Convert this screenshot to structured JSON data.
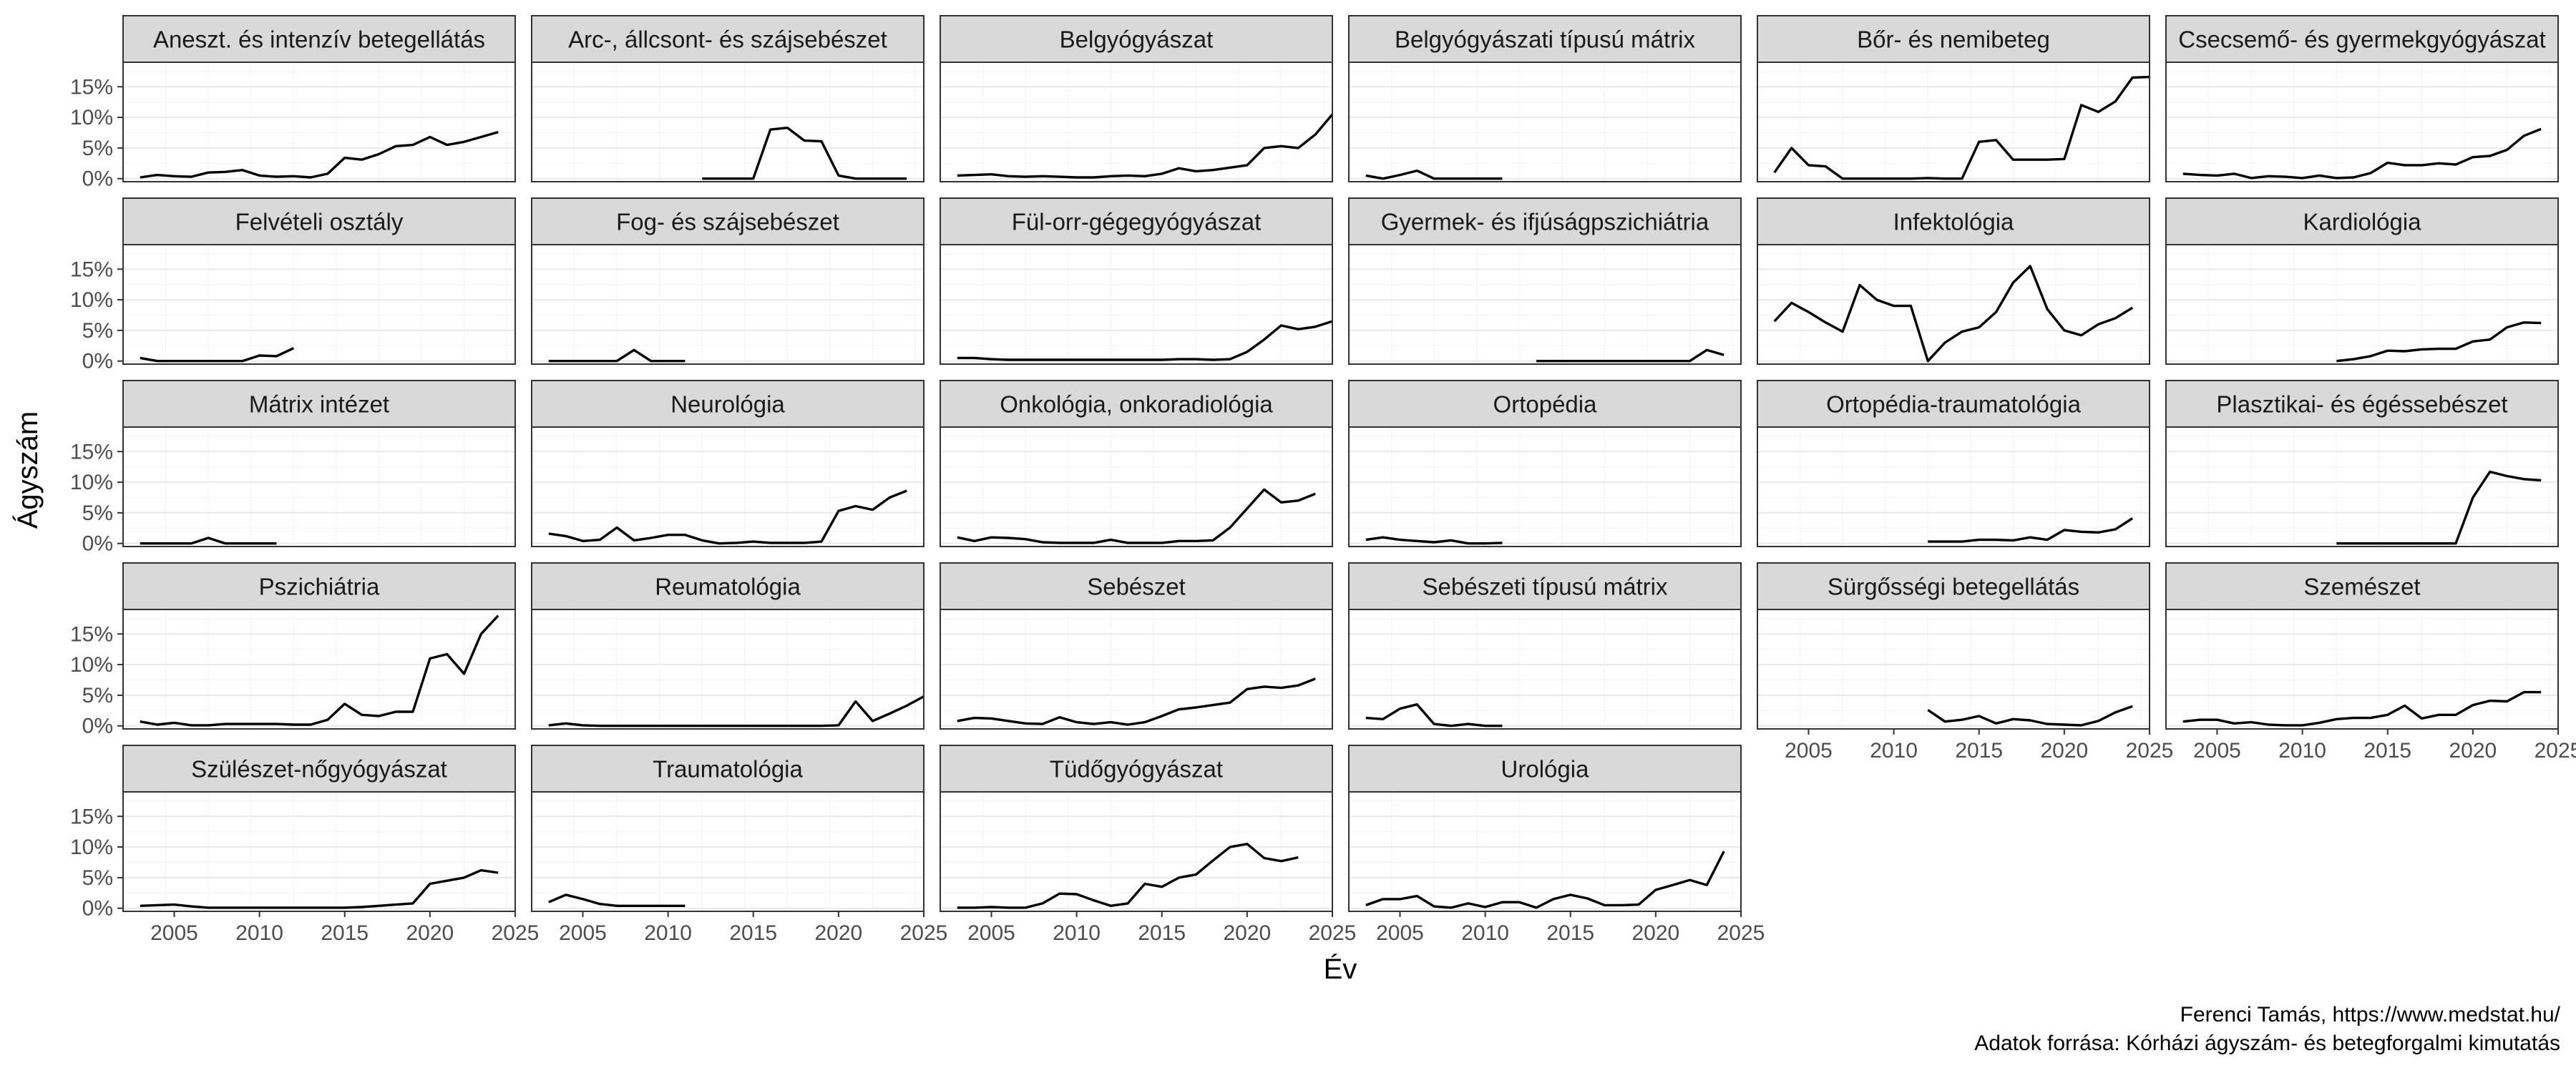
{
  "chart_data": {
    "type": "line",
    "xlabel": "Év",
    "ylabel": "Ágyszám",
    "xlim": [
      2002,
      2025
    ],
    "ylim": [
      -0.005,
      0.19
    ],
    "x_ticks": [
      2005,
      2010,
      2015,
      2020,
      2025
    ],
    "y_ticks": [
      0,
      0.05,
      0.1,
      0.15
    ],
    "y_tick_labels": [
      "0%",
      "5%",
      "10%",
      "15%"
    ],
    "ncol": 6,
    "grid": true,
    "line_color": "#000000",
    "strip_fill": "#d9d9d9",
    "caption": [
      "Ferenci Tamás, https://www.medstat.hu/",
      "Adatok forrása: Kórházi ágyszám- és betegforgalmi kimutatás"
    ],
    "panels": [
      {
        "name": "Aneszt. és intenzív betegellátás",
        "x_start": 2003,
        "values": [
          0.002,
          0.006,
          0.004,
          0.003,
          0.01,
          0.011,
          0.014,
          0.005,
          0.003,
          0.004,
          0.002,
          0.008,
          0.034,
          0.031,
          0.04,
          0.053,
          0.055,
          0.068,
          0.055,
          0.06,
          0.068,
          0.076
        ]
      },
      {
        "name": "Arc-, állcsont- és szájsebészet",
        "x_start": 2012,
        "values": [
          0.0,
          0.0,
          0.0,
          0.0,
          0.08,
          0.083,
          0.062,
          0.061,
          0.005,
          0.0,
          0.0,
          0.0,
          0.0
        ]
      },
      {
        "name": "Belgyógyászat",
        "x_start": 2003,
        "values": [
          0.005,
          0.006,
          0.007,
          0.004,
          0.003,
          0.004,
          0.003,
          0.002,
          0.002,
          0.004,
          0.005,
          0.004,
          0.008,
          0.017,
          0.012,
          0.014,
          0.018,
          0.022,
          0.05,
          0.053,
          0.05,
          0.072,
          0.105
        ]
      },
      {
        "name": "Belgyógyászati típusú mátrix",
        "x_start": 2003,
        "values": [
          0.005,
          0.0,
          0.006,
          0.013,
          0.0,
          0.0,
          0.0,
          0.0,
          0.0
        ]
      },
      {
        "name": "Bőr- és nemibeteg",
        "x_start": 2003,
        "values": [
          0.01,
          0.05,
          0.022,
          0.02,
          0.0,
          0.0,
          0.0,
          0.0,
          0.0,
          0.001,
          0.0,
          0.0,
          0.06,
          0.063,
          0.031,
          0.031,
          0.031,
          0.032,
          0.12,
          0.109,
          0.126,
          0.165,
          0.166
        ]
      },
      {
        "name": "Csecsemő- és gyermekgyógyászat",
        "x_start": 2003,
        "values": [
          0.008,
          0.006,
          0.005,
          0.008,
          0.001,
          0.004,
          0.003,
          0.001,
          0.005,
          0.001,
          0.002,
          0.009,
          0.026,
          0.022,
          0.022,
          0.025,
          0.023,
          0.035,
          0.037,
          0.047,
          0.07,
          0.081
        ]
      },
      {
        "name": "Felvételi osztály",
        "x_start": 2003,
        "values": [
          0.005,
          0.0,
          0.0,
          0.0,
          0.0,
          0.0,
          0.0,
          0.009,
          0.008,
          0.021
        ]
      },
      {
        "name": "Fog- és szájsebészet",
        "x_start": 2003,
        "values": [
          0.0,
          0.0,
          0.0,
          0.0,
          0.0,
          0.018,
          0.0,
          0.0,
          0.0
        ]
      },
      {
        "name": "Fül-orr-gégegyógyászat",
        "x_start": 2003,
        "values": [
          0.005,
          0.005,
          0.003,
          0.002,
          0.002,
          0.002,
          0.002,
          0.002,
          0.002,
          0.002,
          0.002,
          0.002,
          0.002,
          0.003,
          0.003,
          0.002,
          0.003,
          0.015,
          0.035,
          0.058,
          0.052,
          0.056,
          0.065
        ]
      },
      {
        "name": "Gyermek- és ifjúságpszichiátria",
        "x_start": 2013,
        "values": [
          0.0,
          0.0,
          0.0,
          0.0,
          0.0,
          0.0,
          0.0,
          0.0,
          0.0,
          0.0,
          0.018,
          0.01
        ]
      },
      {
        "name": "Infektológia",
        "x_start": 2003,
        "values": [
          0.065,
          0.095,
          0.08,
          0.063,
          0.048,
          0.124,
          0.1,
          0.09,
          0.09,
          0.0,
          0.03,
          0.048,
          0.055,
          0.08,
          0.128,
          0.155,
          0.085,
          0.05,
          0.042,
          0.06,
          0.07,
          0.087
        ]
      },
      {
        "name": "Kardiológia",
        "x_start": 2012,
        "values": [
          0.0,
          0.003,
          0.008,
          0.017,
          0.016,
          0.019,
          0.02,
          0.02,
          0.032,
          0.035,
          0.055,
          0.063,
          0.062
        ]
      },
      {
        "name": "Mátrix intézet",
        "x_start": 2003,
        "values": [
          0.0,
          0.0,
          0.0,
          0.0,
          0.009,
          0.0,
          0.0,
          0.0,
          0.0
        ]
      },
      {
        "name": "Neurológia",
        "x_start": 2003,
        "values": [
          0.016,
          0.012,
          0.004,
          0.006,
          0.026,
          0.005,
          0.009,
          0.014,
          0.014,
          0.005,
          0.0,
          0.001,
          0.003,
          0.001,
          0.001,
          0.001,
          0.003,
          0.053,
          0.061,
          0.055,
          0.075,
          0.086
        ]
      },
      {
        "name": "Onkológia, onkoradiológia",
        "x_start": 2003,
        "values": [
          0.01,
          0.004,
          0.01,
          0.009,
          0.007,
          0.002,
          0.001,
          0.001,
          0.001,
          0.006,
          0.001,
          0.001,
          0.001,
          0.004,
          0.004,
          0.005,
          0.026,
          0.057,
          0.088,
          0.067,
          0.07,
          0.081
        ]
      },
      {
        "name": "Ortopédia",
        "x_start": 2003,
        "values": [
          0.006,
          0.01,
          0.006,
          0.004,
          0.002,
          0.005,
          0.0,
          0.0,
          0.001
        ]
      },
      {
        "name": "Ortopédia-traumatológia",
        "x_start": 2012,
        "values": [
          0.003,
          0.003,
          0.003,
          0.006,
          0.006,
          0.005,
          0.01,
          0.006,
          0.022,
          0.019,
          0.018,
          0.023,
          0.041
        ]
      },
      {
        "name": "Plasztikai- és égéssebészet",
        "x_start": 2012,
        "values": [
          0.0,
          0.0,
          0.0,
          0.0,
          0.0,
          0.0,
          0.0,
          0.0,
          0.075,
          0.117,
          0.11,
          0.105,
          0.103
        ]
      },
      {
        "name": "Pszichiátria",
        "x_start": 2003,
        "values": [
          0.007,
          0.002,
          0.005,
          0.001,
          0.001,
          0.003,
          0.003,
          0.003,
          0.003,
          0.002,
          0.002,
          0.01,
          0.036,
          0.018,
          0.016,
          0.023,
          0.023,
          0.11,
          0.117,
          0.085,
          0.15,
          0.18
        ]
      },
      {
        "name": "Reumatológia",
        "x_start": 2003,
        "values": [
          0.001,
          0.004,
          0.001,
          0.0,
          0.0,
          0.0,
          0.0,
          0.0,
          0.0,
          0.0,
          0.0,
          0.0,
          0.0,
          0.0,
          0.0,
          0.0,
          0.0,
          0.001,
          0.04,
          0.008,
          0.02,
          0.033,
          0.048
        ]
      },
      {
        "name": "Sebészet",
        "x_start": 2003,
        "values": [
          0.008,
          0.013,
          0.012,
          0.008,
          0.004,
          0.003,
          0.014,
          0.006,
          0.003,
          0.006,
          0.002,
          0.006,
          0.016,
          0.027,
          0.03,
          0.034,
          0.038,
          0.06,
          0.064,
          0.062,
          0.066,
          0.077
        ]
      },
      {
        "name": "Sebészeti típusú mátrix",
        "x_start": 2003,
        "values": [
          0.013,
          0.011,
          0.028,
          0.035,
          0.003,
          0.0,
          0.003,
          0.0,
          0.0
        ]
      },
      {
        "name": "Sürgősségi betegellátás",
        "x_start": 2012,
        "values": [
          0.026,
          0.007,
          0.01,
          0.016,
          0.004,
          0.011,
          0.009,
          0.003,
          0.002,
          0.001,
          0.008,
          0.022,
          0.032
        ]
      },
      {
        "name": "Szemészet",
        "x_start": 2003,
        "values": [
          0.007,
          0.01,
          0.01,
          0.004,
          0.006,
          0.002,
          0.001,
          0.001,
          0.005,
          0.011,
          0.013,
          0.013,
          0.018,
          0.033,
          0.012,
          0.018,
          0.018,
          0.034,
          0.041,
          0.04,
          0.055,
          0.055
        ]
      },
      {
        "name": "Szülészet-nőgyógyászat",
        "x_start": 2003,
        "values": [
          0.004,
          0.005,
          0.006,
          0.003,
          0.001,
          0.001,
          0.001,
          0.001,
          0.001,
          0.001,
          0.001,
          0.001,
          0.001,
          0.002,
          0.004,
          0.006,
          0.008,
          0.04,
          0.045,
          0.05,
          0.062,
          0.058
        ]
      },
      {
        "name": "Traumatológia",
        "x_start": 2003,
        "values": [
          0.01,
          0.022,
          0.015,
          0.007,
          0.004,
          0.004,
          0.004,
          0.004,
          0.004
        ]
      },
      {
        "name": "Tüdőgyógyászat",
        "x_start": 2003,
        "values": [
          0.001,
          0.001,
          0.002,
          0.001,
          0.001,
          0.008,
          0.024,
          0.023,
          0.013,
          0.004,
          0.008,
          0.04,
          0.035,
          0.05,
          0.055,
          0.078,
          0.1,
          0.105,
          0.082,
          0.077,
          0.083
        ]
      },
      {
        "name": "Urológia",
        "x_start": 2003,
        "values": [
          0.005,
          0.015,
          0.015,
          0.02,
          0.003,
          0.001,
          0.008,
          0.002,
          0.01,
          0.01,
          0.001,
          0.015,
          0.022,
          0.016,
          0.005,
          0.005,
          0.006,
          0.03,
          0.038,
          0.046,
          0.038,
          0.093
        ]
      }
    ]
  }
}
